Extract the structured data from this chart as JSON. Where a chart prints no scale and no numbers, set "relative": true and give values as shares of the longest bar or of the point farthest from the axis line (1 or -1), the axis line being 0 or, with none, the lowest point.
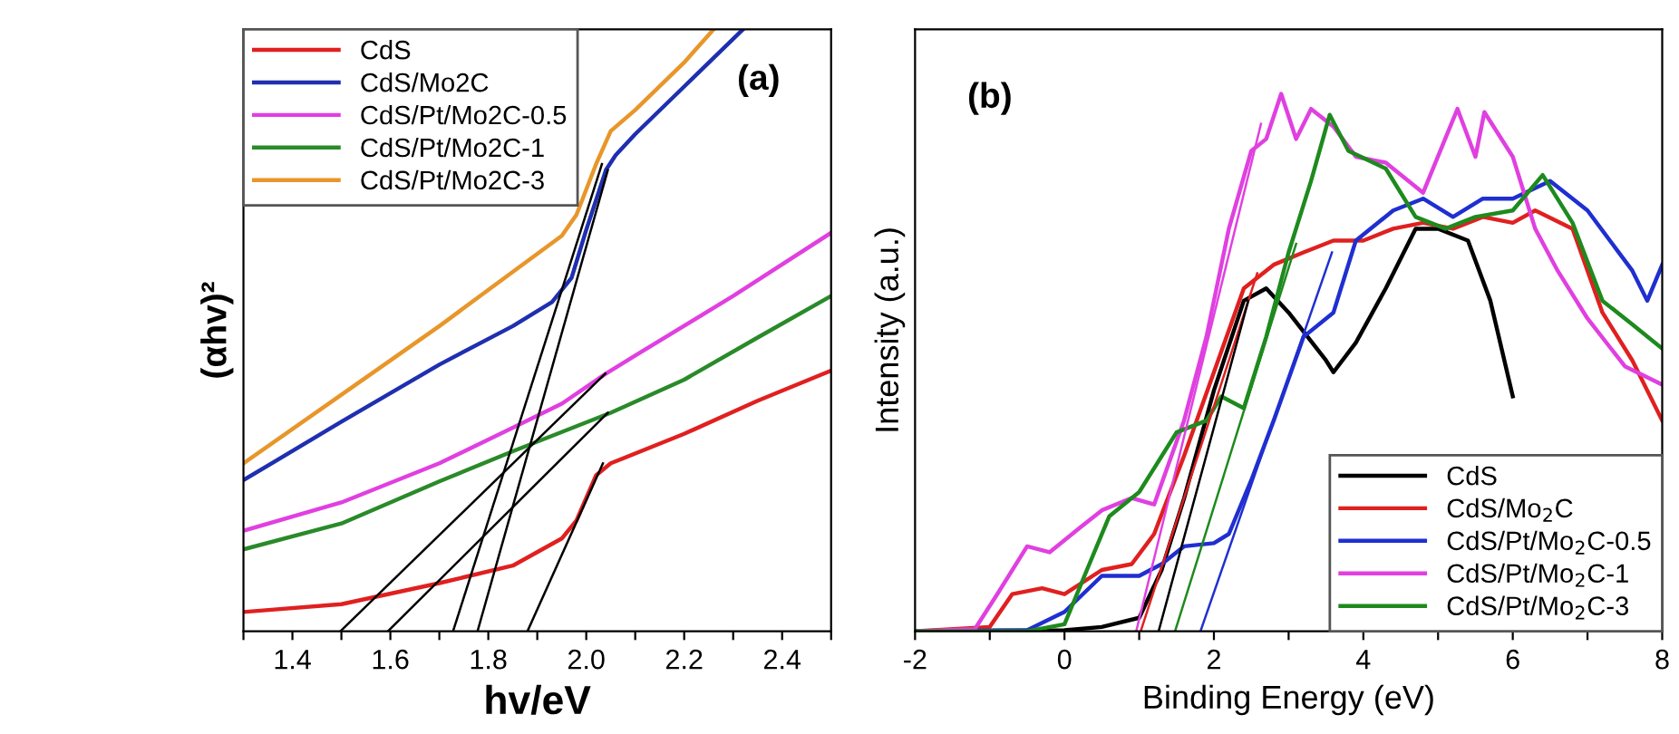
{
  "chart_data": [
    {
      "type": "line",
      "relative": true,
      "xlabel": "hv/eV",
      "ylabel": "(αhv)²",
      "annotations": [
        "(a)"
      ],
      "xlim": [
        1.3,
        2.5
      ],
      "xticks": [
        {
          "value": 1.3,
          "label": null
        },
        1.4,
        {
          "value": 1.5,
          "label": null
        },
        1.6,
        {
          "value": 1.7,
          "label": null
        },
        1.8,
        {
          "value": 1.9,
          "label": null
        },
        {
          "value": 2.0,
          "label": "2.0"
        },
        {
          "value": 2.1,
          "label": null
        },
        2.2,
        {
          "value": 2.3,
          "label": null
        },
        2.4,
        {
          "value": 2.5,
          "label": null
        }
      ],
      "tick_labels": "x",
      "legend": "top left",
      "grid": false,
      "series": [
        {
          "name": "CdS",
          "color": "#e02020",
          "x": [
            1.3,
            1.5,
            1.7,
            1.85,
            1.95,
            1.98,
            2.02,
            2.05,
            2.2,
            2.35,
            2.5
          ],
          "values": [
            0.032,
            0.045,
            0.08,
            0.109,
            0.154,
            0.184,
            0.259,
            0.279,
            0.328,
            0.383,
            0.433
          ]
        },
        {
          "name": "CdS/Mo2C",
          "color": "#1f2fb0",
          "x": [
            1.3,
            1.5,
            1.7,
            1.85,
            1.93,
            1.97,
            2.0,
            2.04,
            2.06,
            2.1,
            2.2,
            2.32
          ],
          "values": [
            0.251,
            0.348,
            0.443,
            0.507,
            0.547,
            0.587,
            0.667,
            0.766,
            0.791,
            0.826,
            0.905,
            1.0
          ]
        },
        {
          "name": "CdS/Pt/Mo2C-0.5",
          "color": "#e040e0",
          "x": [
            1.3,
            1.5,
            1.7,
            1.85,
            1.95,
            2.04,
            2.1,
            2.3,
            2.5
          ],
          "values": [
            0.167,
            0.214,
            0.279,
            0.338,
            0.378,
            0.428,
            0.458,
            0.557,
            0.662
          ]
        },
        {
          "name": "CdS/Pt/Mo2C-1",
          "color": "#2a8a2a",
          "x": [
            1.3,
            1.5,
            1.7,
            1.85,
            2.05,
            2.2,
            2.35,
            2.5
          ],
          "values": [
            0.136,
            0.179,
            0.249,
            0.299,
            0.363,
            0.418,
            0.488,
            0.557
          ]
        },
        {
          "name": "CdS/Pt/Mo2C-3",
          "color": "#e8962a",
          "x": [
            1.3,
            1.5,
            1.7,
            1.85,
            1.95,
            1.98,
            2.02,
            2.05,
            2.1,
            2.2,
            2.26
          ],
          "values": [
            0.279,
            0.393,
            0.507,
            0.597,
            0.657,
            0.692,
            0.776,
            0.831,
            0.866,
            0.945,
            1.0
          ]
        },
        {
          "color": "#000000",
          "x": [
            1.498,
            2.039
          ],
          "values": [
            0,
            0.428
          ]
        },
        {
          "color": "#000000",
          "x": [
            1.595,
            2.044
          ],
          "values": [
            0,
            0.363
          ]
        },
        {
          "color": "#000000",
          "x": [
            1.728,
            2.032
          ],
          "values": [
            0,
            0.776
          ]
        },
        {
          "color": "#000000",
          "x": [
            1.778,
            2.044
          ],
          "values": [
            0,
            0.766
          ]
        },
        {
          "color": "#000000",
          "x": [
            1.88,
            2.034
          ],
          "values": [
            0,
            0.279
          ]
        }
      ]
    },
    {
      "type": "line",
      "relative": true,
      "xlabel": "Binding Energy (eV)",
      "ylabel": "Intensity (a.u.)",
      "annotations": [
        "(b)"
      ],
      "xlim": [
        -2,
        8
      ],
      "xticks": [
        -2,
        {
          "value": -1,
          "label": null
        },
        0,
        {
          "value": 1,
          "label": null
        },
        2,
        {
          "value": 3,
          "label": null
        },
        4,
        {
          "value": 5,
          "label": null
        },
        6,
        {
          "value": 7,
          "label": null
        },
        8
      ],
      "tick_labels": "x",
      "legend": "bottom right",
      "grid": false,
      "series": [
        {
          "name": "CdS",
          "color": "#000000",
          "x": [
            -2,
            0,
            0.5,
            1.0,
            1.3,
            1.6,
            2.0,
            2.4,
            2.7,
            3.0,
            3.5,
            3.6,
            3.9,
            4.3,
            4.7,
            5.0,
            5.4,
            5.7,
            6.0
          ],
          "values": [
            0,
            0.002,
            0.008,
            0.025,
            0.114,
            0.247,
            0.448,
            0.615,
            0.638,
            0.593,
            0.504,
            0.482,
            0.537,
            0.638,
            0.749,
            0.749,
            0.727,
            0.615,
            0.437
          ]
        },
        {
          "name": "CdS/Mo$_{2}$C",
          "color": "#e02020",
          "x": [
            -2,
            -1.0,
            -0.7,
            -0.3,
            0,
            0.5,
            0.9,
            1.2,
            1.6,
            2.0,
            2.4,
            2.8,
            3.2,
            3.6,
            4.0,
            4.4,
            4.8,
            5.2,
            5.6,
            6.0,
            6.3,
            6.8,
            7.2,
            7.6,
            8
          ],
          "values": [
            0,
            0.008,
            0.069,
            0.08,
            0.069,
            0.114,
            0.125,
            0.181,
            0.326,
            0.482,
            0.638,
            0.682,
            0.705,
            0.727,
            0.727,
            0.749,
            0.76,
            0.749,
            0.771,
            0.76,
            0.783,
            0.749,
            0.593,
            0.504,
            0.392
          ]
        },
        {
          "name": "CdS/Pt/Mo$_{2}$C-0.5",
          "color": "#1f2fd0",
          "x": [
            -2,
            -0.5,
            0,
            0.5,
            1.0,
            1.3,
            1.6,
            2.0,
            2.2,
            2.5,
            2.8,
            3.2,
            3.6,
            3.9,
            4.4,
            4.8,
            5.2,
            5.6,
            6.0,
            6.5,
            7.0,
            7.3,
            7.6,
            7.8,
            8
          ],
          "values": [
            0,
            0.002,
            0.036,
            0.103,
            0.103,
            0.125,
            0.158,
            0.164,
            0.181,
            0.281,
            0.392,
            0.548,
            0.593,
            0.727,
            0.783,
            0.805,
            0.771,
            0.805,
            0.805,
            0.838,
            0.783,
            0.727,
            0.671,
            0.615,
            0.682
          ]
        },
        {
          "name": "CdS/Pt/Mo$_{2}$C-1",
          "color": "#e040e0",
          "x": [
            -2,
            -1.2,
            -0.9,
            -0.5,
            -0.2,
            0.2,
            0.5,
            0.9,
            1.2,
            1.6,
            1.9,
            2.2,
            2.5,
            2.7,
            2.9,
            3.1,
            3.3,
            3.6,
            3.9,
            4.3,
            4.8,
            5.26,
            5.5,
            5.62,
            6.0,
            6.3,
            6.6,
            7.0,
            7.5,
            8
          ],
          "values": [
            0,
            0.004,
            0.069,
            0.158,
            0.147,
            0.192,
            0.225,
            0.248,
            0.236,
            0.392,
            0.548,
            0.749,
            0.894,
            0.916,
            1.0,
            0.916,
            0.972,
            0.939,
            0.883,
            0.872,
            0.816,
            0.972,
            0.883,
            0.966,
            0.883,
            0.749,
            0.671,
            0.582,
            0.493,
            0.459
          ]
        },
        {
          "name": "CdS/Pt/Mo$_{2}$C-3",
          "color": "#1e8a1e",
          "x": [
            -2,
            -0.5,
            0,
            0.3,
            0.6,
            1.0,
            1.5,
            1.9,
            2.1,
            2.4,
            2.7,
            3.0,
            3.3,
            3.55,
            3.8,
            4.3,
            4.7,
            5.1,
            5.5,
            6.0,
            6.4,
            6.8,
            7.2,
            7.6,
            8
          ],
          "values": [
            0,
            0,
            0.013,
            0.114,
            0.214,
            0.259,
            0.37,
            0.392,
            0.437,
            0.415,
            0.548,
            0.705,
            0.838,
            0.961,
            0.894,
            0.861,
            0.771,
            0.749,
            0.771,
            0.783,
            0.849,
            0.76,
            0.615,
            0.571,
            0.526
          ]
        },
        {
          "color": "#e040e0",
          "x": [
            0.96,
            2.63
          ],
          "values": [
            0,
            0.944
          ]
        },
        {
          "color": "#e02020",
          "x": [
            1.02,
            2.58
          ],
          "values": [
            0,
            0.666
          ]
        },
        {
          "color": "#000000",
          "x": [
            1.26,
            2.46
          ],
          "values": [
            0,
            0.615
          ]
        },
        {
          "color": "#1e8a1e",
          "x": [
            1.48,
            3.1
          ],
          "values": [
            0,
            0.721
          ]
        },
        {
          "color": "#1f2fd0",
          "x": [
            1.82,
            3.58
          ],
          "values": [
            0,
            0.705
          ]
        }
      ]
    }
  ]
}
